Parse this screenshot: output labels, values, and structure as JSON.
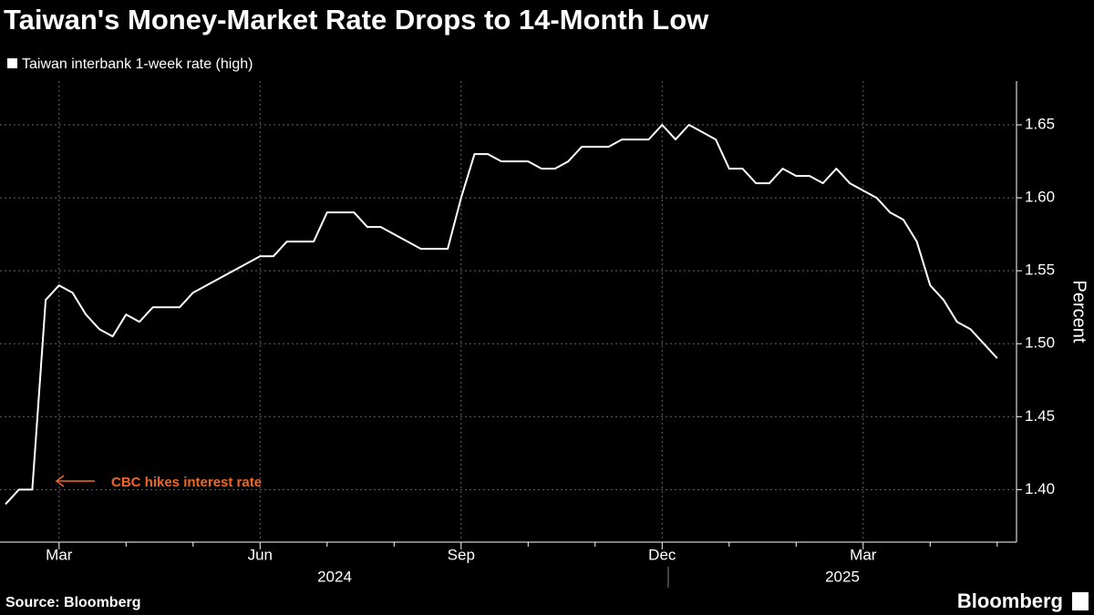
{
  "chart_data": {
    "type": "line",
    "title": "Taiwan's Money-Market Rate Drops to 14-Month Low",
    "y_label": "Percent",
    "source": "Source: Bloomberg",
    "brand": "Bloomberg",
    "annotation": "CBC hikes interest rate",
    "years": [
      "2024",
      "2025"
    ],
    "categories": [
      null,
      null,
      null,
      null,
      "Mar",
      null,
      null,
      null,
      null,
      null,
      null,
      null,
      null,
      null,
      null,
      null,
      null,
      null,
      null,
      "Jun",
      null,
      null,
      null,
      null,
      null,
      null,
      null,
      null,
      null,
      null,
      null,
      null,
      null,
      null,
      "Sep",
      null,
      null,
      null,
      null,
      null,
      null,
      null,
      null,
      null,
      null,
      null,
      null,
      null,
      null,
      "Dec",
      null,
      null,
      null,
      null,
      null,
      null,
      null,
      null,
      null,
      null,
      null,
      null,
      null,
      null,
      "Mar",
      null,
      null,
      null,
      null,
      null,
      null,
      null,
      null,
      null,
      null
    ],
    "series": [
      {
        "name": "Taiwan interbank 1-week rate (high)",
        "color": "#ffffff",
        "values": [
          1.39,
          1.4,
          1.4,
          1.53,
          1.54,
          1.535,
          1.52,
          1.51,
          1.505,
          1.52,
          1.515,
          1.525,
          1.525,
          1.525,
          1.535,
          1.54,
          1.545,
          1.55,
          1.555,
          1.56,
          1.56,
          1.57,
          1.57,
          1.57,
          1.59,
          1.59,
          1.59,
          1.58,
          1.58,
          1.575,
          1.57,
          1.565,
          1.565,
          1.565,
          1.6,
          1.63,
          1.63,
          1.625,
          1.625,
          1.625,
          1.62,
          1.62,
          1.625,
          1.635,
          1.635,
          1.635,
          1.64,
          1.64,
          1.64,
          1.65,
          1.64,
          1.65,
          1.645,
          1.64,
          1.62,
          1.62,
          1.61,
          1.61,
          1.62,
          1.615,
          1.615,
          1.61,
          1.62,
          1.61,
          1.605,
          1.6,
          1.59,
          1.585,
          1.57,
          1.54,
          1.53,
          1.515,
          1.51,
          1.5,
          1.49
        ]
      }
    ],
    "ylim": [
      1.364,
      1.68
    ],
    "yticks": [
      {
        "value": 1.4,
        "label": "1.40"
      },
      1.45,
      {
        "value": 1.5,
        "label": "1.50"
      },
      1.55,
      {
        "value": 1.6,
        "label": "1.60"
      },
      1.65
    ],
    "grid": true
  }
}
